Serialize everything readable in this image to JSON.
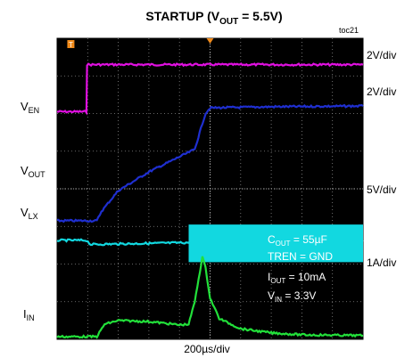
{
  "chart_data": {
    "type": "line",
    "title": {
      "main": "STARTUP (V",
      "sub": "OUT",
      "tail": " = 5.5V)"
    },
    "figure_id": "toc21",
    "xlabel": "200µs/div",
    "x_divisions": 10,
    "y_divisions": 8,
    "grid": true,
    "channel_labels": [
      {
        "main": "V",
        "sub": "EN"
      },
      {
        "main": "V",
        "sub": "OUT"
      },
      {
        "main": "V",
        "sub": "LX"
      },
      {
        "main": "I",
        "sub": "IN"
      }
    ],
    "scales": [
      "2V/div",
      "2V/div",
      "5V/div",
      "1A/div"
    ],
    "conditions": [
      {
        "main": "C",
        "sub": "OUT",
        "tail": " =  55µF"
      },
      {
        "main": "TREN = GND",
        "sub": "",
        "tail": ""
      },
      {
        "main": "I",
        "sub": "OUT",
        "tail": " = 10mA"
      },
      {
        "main": "V",
        "sub": "IN",
        "tail": " = 3.3V"
      }
    ],
    "series": [
      {
        "color": "#e010e0",
        "x": [
          0,
          0.96,
          0.98,
          10
        ],
        "y": [
          6.05,
          6.05,
          7.3,
          7.3
        ]
      },
      {
        "color": "#1f2fd0",
        "x": [
          0,
          1.3,
          1.45,
          2.0,
          3.0,
          4.0,
          4.5,
          4.7,
          4.85,
          5.0,
          7.0,
          10
        ],
        "y": [
          3.15,
          3.15,
          3.4,
          3.95,
          4.45,
          4.85,
          5.05,
          5.6,
          6.0,
          6.15,
          6.18,
          6.2
        ]
      },
      {
        "color": "#12d8e0",
        "x": [
          0,
          0.96,
          1.1,
          4.3,
          4.4,
          10
        ],
        "y": [
          2.63,
          2.63,
          2.52,
          2.57,
          2.6,
          2.6
        ]
      },
      {
        "color": "#22e03a",
        "x": [
          0,
          1.3,
          1.55,
          2.0,
          3.0,
          3.6,
          4.0,
          4.3,
          4.5,
          4.75,
          4.85,
          5.0,
          5.3,
          6.0,
          7.0,
          8.0,
          10
        ],
        "y": [
          0.07,
          0.07,
          0.4,
          0.5,
          0.47,
          0.42,
          0.38,
          0.4,
          1.0,
          2.2,
          1.9,
          1.1,
          0.55,
          0.28,
          0.17,
          0.12,
          0.1
        ]
      }
    ],
    "switching_band": {
      "color": "#12d8e0",
      "x": [
        4.3,
        10
      ],
      "y_low": 2.05,
      "y_high": 3.05
    },
    "trigger_markers": [
      {
        "x": 0.45,
        "color": "#f08a1a",
        "label": "T"
      },
      {
        "x": 5,
        "color": "#f08a1a",
        "label": ""
      }
    ]
  }
}
